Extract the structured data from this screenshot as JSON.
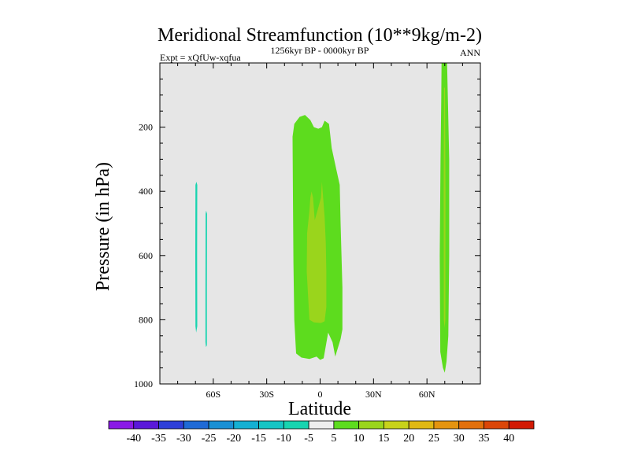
{
  "chart_data": {
    "type": "contour",
    "title": "Meridional Streamfunction (10**9kg/m-2)",
    "subtitle_left": "Expt = xQfUw-xqfua",
    "subtitle_center": "1256kyr BP - 0000kyr BP",
    "subtitle_right": "ANN",
    "xlabel": "Latitude",
    "ylabel": "Pressure (in hPa)",
    "xlim": [
      -90,
      90
    ],
    "ylim": [
      0,
      1000
    ],
    "y_inverted": true,
    "x_ticks": [
      {
        "value": -60,
        "label": "60S"
      },
      {
        "value": -30,
        "label": "30S"
      },
      {
        "value": 0,
        "label": "0"
      },
      {
        "value": 30,
        "label": "30N"
      },
      {
        "value": 60,
        "label": "60N"
      }
    ],
    "y_ticks": [
      {
        "value": 200,
        "label": "200"
      },
      {
        "value": 400,
        "label": "400"
      },
      {
        "value": 600,
        "label": "600"
      },
      {
        "value": 800,
        "label": "800"
      },
      {
        "value": 1000,
        "label": "1000"
      }
    ],
    "background_color": "#e6e6e6",
    "levels": [
      -40,
      -35,
      -30,
      -25,
      -20,
      -15,
      -10,
      -5,
      5,
      10,
      15,
      20,
      25,
      30,
      35,
      40
    ],
    "colorbar_colors": [
      "#8a1ae6",
      "#5a19d9",
      "#2e3fd8",
      "#1f6ad6",
      "#1a90d4",
      "#15b0d2",
      "#16c5c4",
      "#18d4b0",
      "#eeeeee",
      "#5ddc1e",
      "#9ad51c",
      "#c8d21a",
      "#e0b814",
      "#e49410",
      "#e2700c",
      "#db4608",
      "#d21a04"
    ],
    "regions": [
      {
        "name": "cyan-band-1",
        "value_range": [
          -10,
          -5
        ],
        "color": "#18d4b0",
        "polygon": [
          [
            -69.5,
            370
          ],
          [
            -69.0,
            380
          ],
          [
            -69.1,
            600
          ],
          [
            -69.0,
            820
          ],
          [
            -69.6,
            840
          ],
          [
            -70.0,
            820
          ],
          [
            -70.1,
            600
          ],
          [
            -70.0,
            380
          ]
        ]
      },
      {
        "name": "cyan-band-2",
        "value_range": [
          -10,
          -5
        ],
        "color": "#18d4b0",
        "polygon": [
          [
            -64.0,
            460
          ],
          [
            -63.5,
            470
          ],
          [
            -63.6,
            700
          ],
          [
            -63.6,
            880
          ],
          [
            -64.1,
            885
          ],
          [
            -64.4,
            870
          ],
          [
            -64.4,
            700
          ],
          [
            -64.3,
            470
          ]
        ]
      },
      {
        "name": "green-tropics",
        "value_range": [
          5,
          10
        ],
        "color": "#5ddc1e",
        "polygon": [
          [
            -15.5,
            230
          ],
          [
            -14.5,
            190
          ],
          [
            -11.5,
            168
          ],
          [
            -8.5,
            162
          ],
          [
            -5.5,
            178
          ],
          [
            -3.5,
            200
          ],
          [
            -1.0,
            205
          ],
          [
            1.0,
            200
          ],
          [
            2.5,
            180
          ],
          [
            5.0,
            190
          ],
          [
            6.5,
            265
          ],
          [
            9.0,
            330
          ],
          [
            11.0,
            380
          ],
          [
            11.5,
            500
          ],
          [
            12.5,
            700
          ],
          [
            12.5,
            830
          ],
          [
            11.5,
            860
          ],
          [
            8.5,
            915
          ],
          [
            7.0,
            870
          ],
          [
            4.5,
            840
          ],
          [
            2.0,
            920
          ],
          [
            0.0,
            925
          ],
          [
            -2.0,
            915
          ],
          [
            -6.0,
            922
          ],
          [
            -10.5,
            918
          ],
          [
            -13.5,
            905
          ],
          [
            -14.5,
            800
          ],
          [
            -15.0,
            620
          ],
          [
            -15.2,
            450
          ]
        ]
      },
      {
        "name": "yellow-green-core",
        "value_range": [
          10,
          15
        ],
        "color": "#9ad51c",
        "polygon": [
          [
            -6.0,
            460
          ],
          [
            -5.5,
            420
          ],
          [
            -4.8,
            400
          ],
          [
            -4.0,
            420
          ],
          [
            -3.0,
            490
          ],
          [
            -2.0,
            470
          ],
          [
            0.5,
            420
          ],
          [
            1.0,
            370
          ],
          [
            2.5,
            480
          ],
          [
            3.2,
            560
          ],
          [
            3.5,
            650
          ],
          [
            3.5,
            760
          ],
          [
            2.5,
            805
          ],
          [
            0.5,
            810
          ],
          [
            -3.5,
            808
          ],
          [
            -6.0,
            800
          ],
          [
            -7.5,
            650
          ],
          [
            -7.3,
            530
          ]
        ]
      },
      {
        "name": "green-high-latitude",
        "value_range": [
          5,
          10
        ],
        "color": "#5ddc1e",
        "polygon": [
          [
            68.2,
            0
          ],
          [
            71.3,
            0
          ],
          [
            71.8,
            120
          ],
          [
            72.5,
            300
          ],
          [
            72.5,
            600
          ],
          [
            72.0,
            850
          ],
          [
            71.0,
            930
          ],
          [
            70.0,
            965
          ],
          [
            69.0,
            950
          ],
          [
            67.5,
            900
          ],
          [
            67.2,
            600
          ],
          [
            67.6,
            300
          ],
          [
            68.0,
            120
          ]
        ]
      },
      {
        "name": "yellow-green-high-latitude-core",
        "value_range": [
          10,
          15
        ],
        "color": "#9ad51c",
        "polygon": [
          [
            69.6,
            80
          ],
          [
            70.1,
            75
          ],
          [
            70.4,
            400
          ],
          [
            70.3,
            800
          ],
          [
            69.9,
            825
          ],
          [
            69.5,
            800
          ],
          [
            69.4,
            400
          ]
        ]
      }
    ]
  }
}
